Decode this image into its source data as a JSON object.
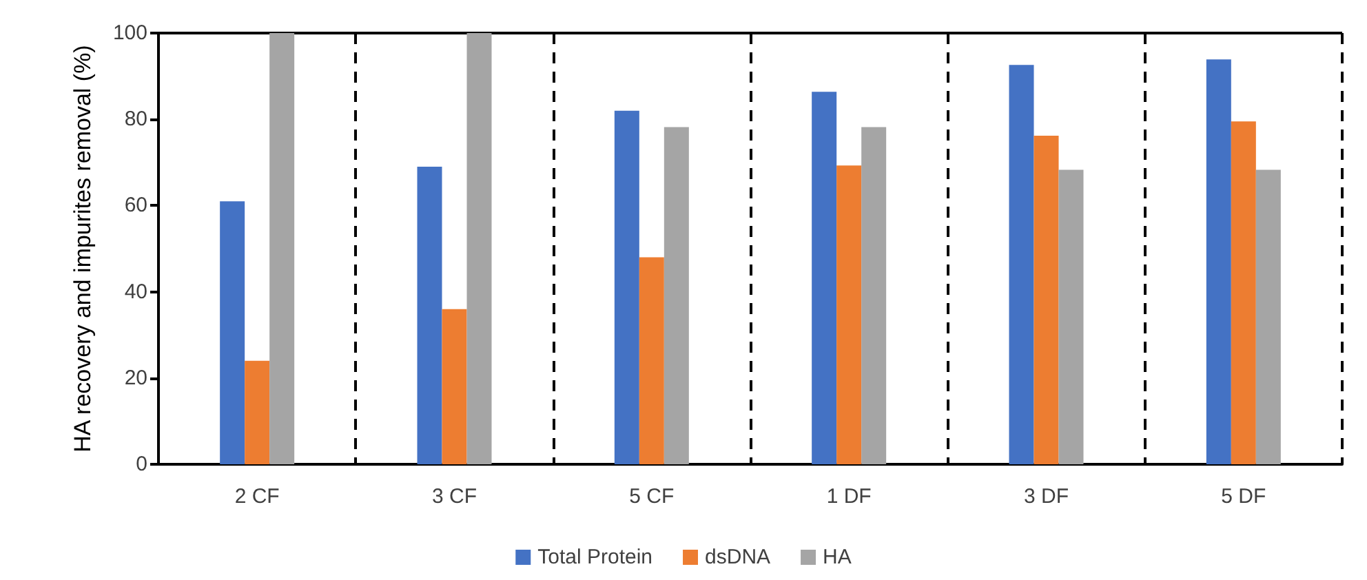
{
  "chart_data": {
    "type": "bar",
    "ylabel": "HA recovery and impurites removal (%)",
    "categories": [
      "2 CF",
      "3 CF",
      "5 CF",
      "1 DF",
      "3 DF",
      "5 DF"
    ],
    "series": [
      {
        "name": "Total Protein",
        "color": "#4472c4",
        "values": [
          61,
          69,
          82,
          86.4,
          92.6,
          93.9
        ]
      },
      {
        "name": "dsDNA",
        "color": "#ed7d31",
        "values": [
          24,
          36,
          48,
          69.3,
          76.2,
          79.5
        ]
      },
      {
        "name": "HA",
        "color": "#a5a5a5",
        "values": [
          100,
          100,
          78.2,
          78.2,
          68.3,
          68.3
        ]
      }
    ],
    "ylim": [
      0,
      100
    ],
    "yticks": [
      0,
      20,
      40,
      60,
      80,
      100
    ],
    "grid": "x",
    "legend": "bottom"
  }
}
